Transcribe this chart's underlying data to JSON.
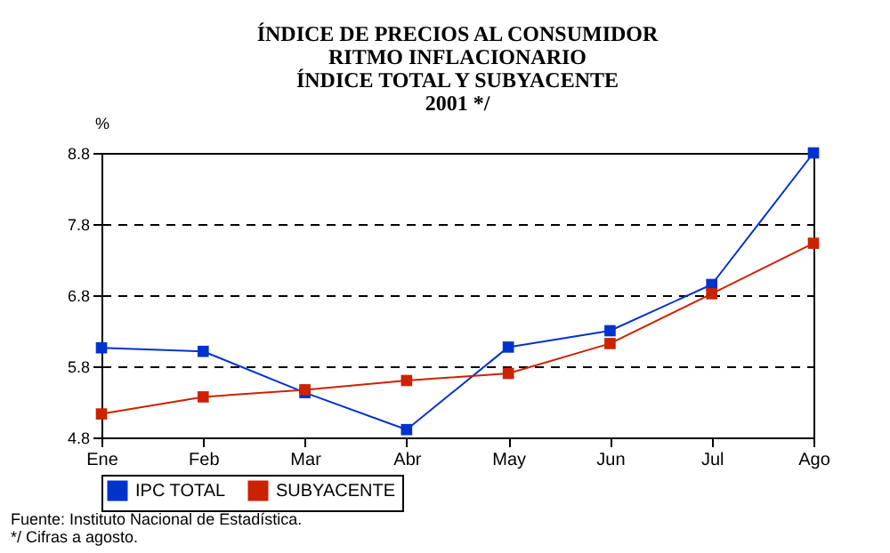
{
  "chart_data": {
    "type": "line",
    "title": "ÍNDICE DE PRECIOS AL CONSUMIDOR\nRITMO INFLACIONARIO\nÍNDICE TOTAL Y SUBYACENTE\n2001 */",
    "ylabel": "%",
    "categories": [
      "Ene",
      "Feb",
      "Mar",
      "Abr",
      "May",
      "Jun",
      "Jul",
      "Ago"
    ],
    "series": [
      {
        "name": "IPC TOTAL",
        "color": "#0033cc",
        "values": [
          6.06,
          6.01,
          5.43,
          4.91,
          6.07,
          6.3,
          6.95,
          8.8
        ]
      },
      {
        "name": "SUBYACENTE",
        "color": "#cc2200",
        "values": [
          5.13,
          5.37,
          5.47,
          5.6,
          5.7,
          6.12,
          6.82,
          7.53
        ]
      }
    ],
    "ylim": [
      4.8,
      8.8
    ],
    "yticks": [
      4.8,
      5.8,
      6.8,
      7.8,
      8.8
    ],
    "grid": "y",
    "legend": "bottom",
    "marker": "square",
    "line_style": "solid",
    "annotations": [
      "Fuente: Instituto Nacional de Estadística.",
      "*/ Cifras a agosto."
    ]
  }
}
